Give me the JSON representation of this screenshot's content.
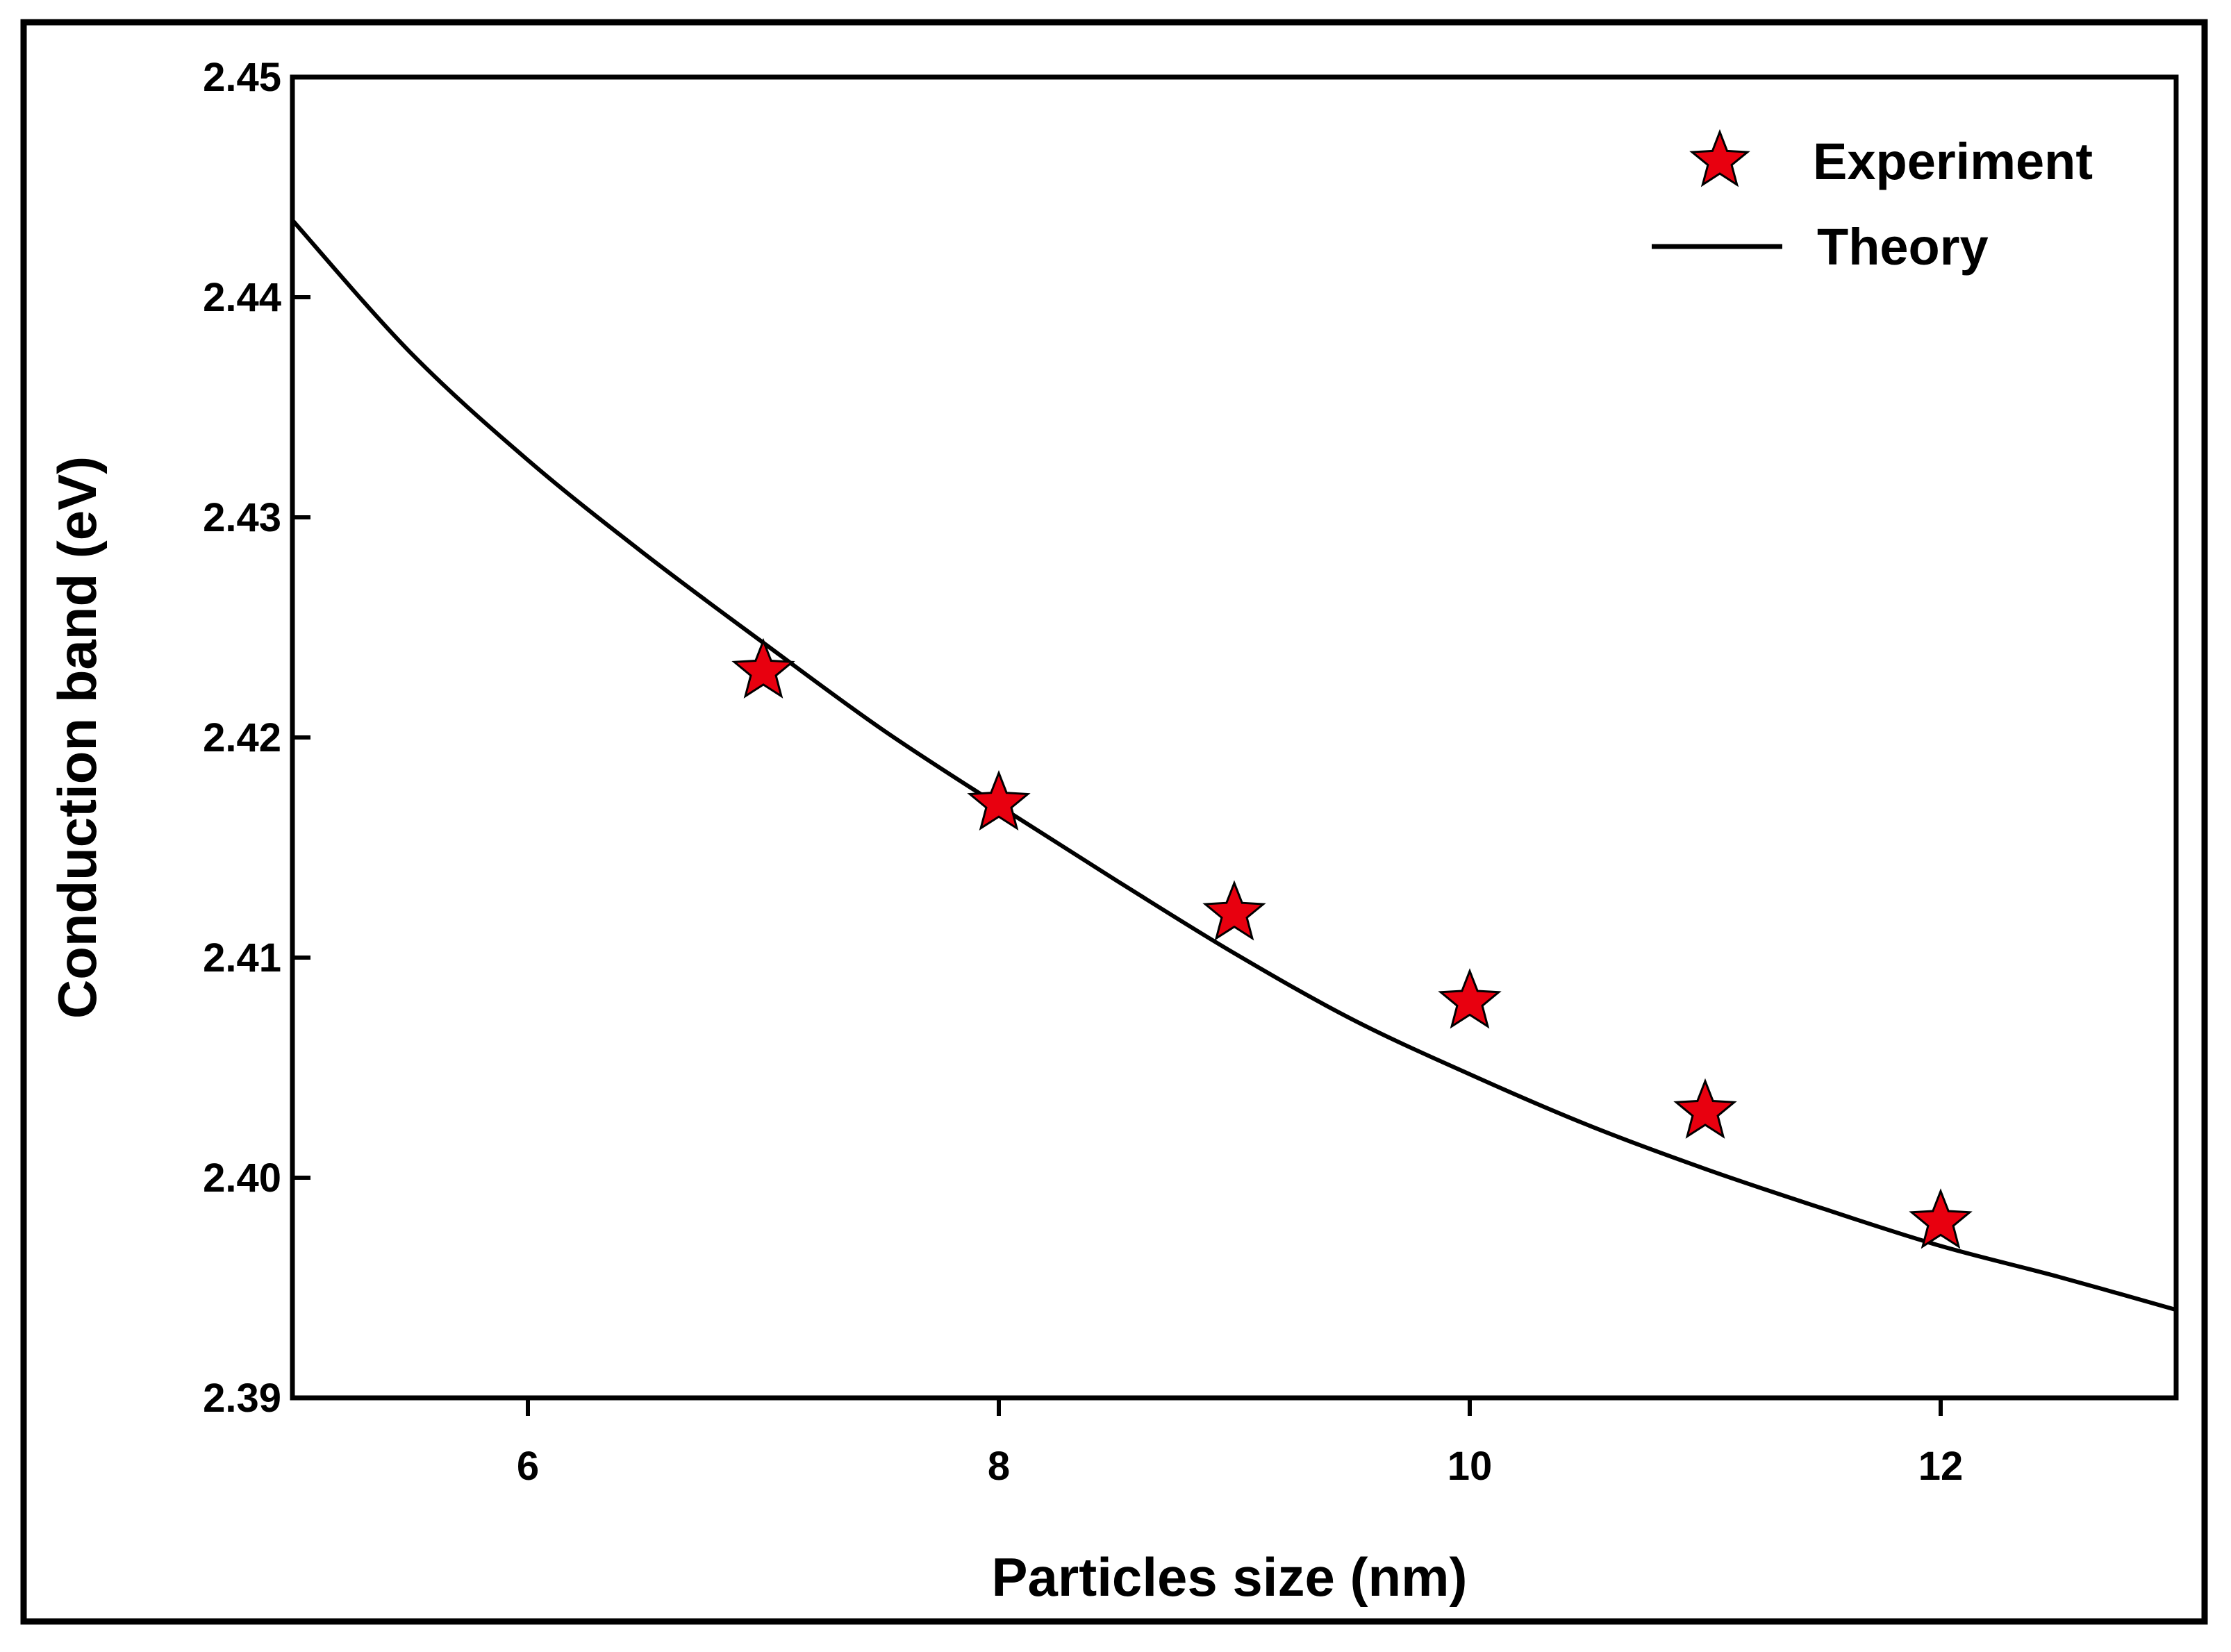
{
  "chart_data": {
    "type": "scatter",
    "title": "",
    "xlabel": "Particles size (nm)",
    "ylabel": "Conduction band (eV)",
    "xlim": [
      5,
      13
    ],
    "ylim": [
      2.39,
      2.45
    ],
    "x_ticks": [
      6,
      8,
      10,
      12
    ],
    "x_tick_labels": [
      "6",
      "8",
      "10",
      "12"
    ],
    "y_ticks": [
      2.39,
      2.4,
      2.41,
      2.42,
      2.43,
      2.44,
      2.45
    ],
    "y_tick_labels": [
      "2.39",
      "2.40",
      "2.41",
      "2.42",
      "2.43",
      "2.44",
      "2.45"
    ],
    "grid": false,
    "legend_position": "top-right",
    "series": [
      {
        "name": "Experiment",
        "kind": "scatter",
        "marker": "star",
        "color": "#e8000f",
        "x": [
          7,
          8,
          9,
          10,
          11,
          12
        ],
        "y": [
          2.423,
          2.417,
          2.412,
          2.408,
          2.403,
          2.398
        ]
      },
      {
        "name": "Theory",
        "kind": "line",
        "color": "#000000",
        "x": [
          5,
          5.5,
          6,
          6.5,
          7,
          7.5,
          8,
          8.5,
          9,
          9.5,
          10,
          10.5,
          11,
          11.5,
          12,
          12.5,
          13
        ],
        "y": [
          2.4435,
          2.4375,
          2.4326,
          2.4283,
          2.4243,
          2.4204,
          2.4169,
          2.4135,
          2.4102,
          2.4072,
          2.4047,
          2.4024,
          2.4004,
          2.3986,
          2.3969,
          2.3955,
          2.394
        ]
      }
    ],
    "legend": {
      "experiment_label": "Experiment",
      "theory_label": "Theory"
    }
  }
}
